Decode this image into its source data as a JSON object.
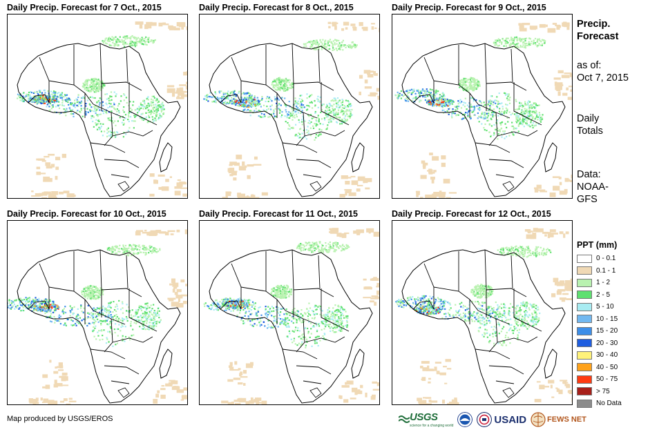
{
  "panels": [
    {
      "title": "Daily Precip. Forecast for 7 Oct., 2015",
      "date": "7 Oct., 2015"
    },
    {
      "title": "Daily Precip. Forecast for 8 Oct., 2015",
      "date": "8 Oct., 2015"
    },
    {
      "title": "Daily Precip. Forecast for 9 Oct., 2015",
      "date": "9 Oct., 2015"
    },
    {
      "title": "Daily Precip. Forecast for 10 Oct., 2015",
      "date": "10 Oct., 2015"
    },
    {
      "title": "Daily Precip. Forecast for 11 Oct., 2015",
      "date": "11 Oct., 2015"
    },
    {
      "title": "Daily Precip. Forecast for 12 Oct., 2015",
      "date": "12 Oct., 2015"
    }
  ],
  "sidebar": {
    "heading_line1": "Precip.",
    "heading_line2": "Forecast",
    "asof_label": "as of:",
    "asof_date": "Oct 7, 2015",
    "totals_line1": "Daily",
    "totals_line2": "Totals",
    "data_label": "Data:",
    "data_source_line1": "NOAA-",
    "data_source_line2": "GFS"
  },
  "legend": {
    "title": "PPT (mm)",
    "items": [
      {
        "label": "0 - 0.1",
        "color": "#ffffff"
      },
      {
        "label": "0.1 - 1",
        "color": "#f0d9b5"
      },
      {
        "label": "1 - 2",
        "color": "#b9f2b0"
      },
      {
        "label": "2 - 5",
        "color": "#5fe070"
      },
      {
        "label": "5 - 10",
        "color": "#a8ecf2"
      },
      {
        "label": "10 - 15",
        "color": "#72b8f0"
      },
      {
        "label": "15 - 20",
        "color": "#3d8ee8"
      },
      {
        "label": "20 - 30",
        "color": "#1f5ee0"
      },
      {
        "label": "30 - 40",
        "color": "#fff27a"
      },
      {
        "label": "40 - 50",
        "color": "#ffa21a"
      },
      {
        "label": "50 - 75",
        "color": "#ff3b12"
      },
      {
        "label": "> 75",
        "color": "#a8201a"
      },
      {
        "label": "No Data",
        "color": "#8c8c8c"
      }
    ]
  },
  "credit": "Map produced by USGS/EROS",
  "logos": {
    "usgs": "USGS",
    "usgs_tagline": "science for a changing world",
    "noaa_icon": "noaa-seal-icon",
    "usaid": "USAID",
    "fews": "FEWS NET"
  }
}
